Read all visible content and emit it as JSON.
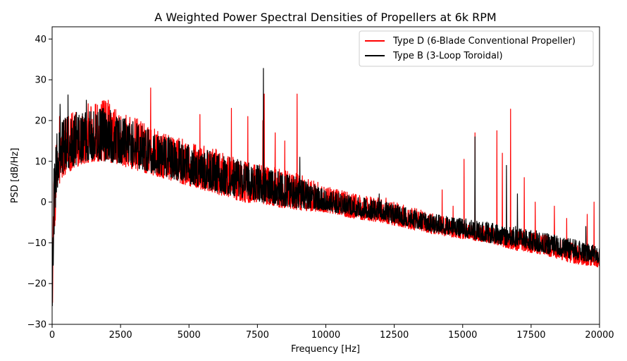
{
  "chart_data": {
    "type": "line",
    "title": "A Weighted Power Spectral Densities of Propellers at 6k RPM",
    "xlabel": "Frequency [Hz]",
    "ylabel": "PSD [dB/Hz]",
    "xlim": [
      0,
      20000
    ],
    "ylim": [
      -30,
      43
    ],
    "xticks": [
      0,
      2500,
      5000,
      7500,
      10000,
      12500,
      15000,
      17500,
      20000
    ],
    "yticks": [
      -30,
      -20,
      -10,
      0,
      10,
      20,
      30,
      40
    ],
    "grid": false,
    "legend_position": "top-right",
    "series": [
      {
        "name": "Type D (6-Blade Conventional Propeller)",
        "color": "#ff0000",
        "envelope": {
          "x": [
            0,
            60,
            150,
            300,
            500,
            1000,
            1500,
            2000,
            2500,
            3000,
            4000,
            5000,
            6000,
            7000,
            8000,
            9000,
            10000,
            11000,
            12000,
            13000,
            14000,
            15000,
            16000,
            17000,
            18000,
            19000,
            20000
          ],
          "low": [
            -30,
            -12,
            0,
            5,
            7,
            9,
            10,
            10,
            9,
            8,
            6,
            4,
            2,
            0,
            -1,
            -2,
            -2.5,
            -4,
            -5,
            -6.5,
            -8,
            -9,
            -10,
            -12,
            -13,
            -15,
            -16
          ],
          "high": [
            -20,
            6,
            15,
            19,
            22,
            23,
            25,
            25,
            22,
            21,
            17,
            15,
            13,
            10,
            9,
            7,
            4,
            2,
            1,
            -1,
            -3,
            -5,
            -6,
            -7,
            -8,
            -10,
            -12
          ]
        },
        "peaks": [
          {
            "x": 270,
            "y": 21
          },
          {
            "x": 600,
            "y": 21
          },
          {
            "x": 1000,
            "y": 20
          },
          {
            "x": 1600,
            "y": 24
          },
          {
            "x": 2050,
            "y": 25
          },
          {
            "x": 3600,
            "y": 28
          },
          {
            "x": 5400,
            "y": 21.5
          },
          {
            "x": 6550,
            "y": 23
          },
          {
            "x": 7150,
            "y": 21
          },
          {
            "x": 7700,
            "y": 20
          },
          {
            "x": 7750,
            "y": 26.5
          },
          {
            "x": 8150,
            "y": 17
          },
          {
            "x": 8500,
            "y": 15
          },
          {
            "x": 8950,
            "y": 26.5
          },
          {
            "x": 10100,
            "y": 3
          },
          {
            "x": 11000,
            "y": 2
          },
          {
            "x": 12200,
            "y": 1
          },
          {
            "x": 14250,
            "y": 3
          },
          {
            "x": 14650,
            "y": -1
          },
          {
            "x": 15050,
            "y": 10.5
          },
          {
            "x": 15450,
            "y": 17
          },
          {
            "x": 16250,
            "y": 17.5
          },
          {
            "x": 16450,
            "y": 12
          },
          {
            "x": 16750,
            "y": 22.8
          },
          {
            "x": 17250,
            "y": 6
          },
          {
            "x": 17650,
            "y": 0
          },
          {
            "x": 18350,
            "y": -1
          },
          {
            "x": 18800,
            "y": -4
          },
          {
            "x": 19550,
            "y": -3
          },
          {
            "x": 19800,
            "y": 0
          }
        ]
      },
      {
        "name": "Type B (3-Loop Toroidal)",
        "color": "#000000",
        "envelope": {
          "x": [
            0,
            60,
            150,
            300,
            500,
            1000,
            1500,
            2000,
            2500,
            3000,
            4000,
            5000,
            6000,
            7000,
            8000,
            9000,
            10000,
            11000,
            12000,
            13000,
            14000,
            15000,
            16000,
            17000,
            18000,
            19000,
            20000
          ],
          "low": [
            -28,
            -10,
            2,
            6,
            8,
            9.5,
            10.5,
            10,
            9.5,
            8.5,
            6.5,
            4.5,
            2.5,
            1,
            -0.5,
            -1.5,
            -2,
            -3.5,
            -4.5,
            -6,
            -7.5,
            -8.5,
            -10,
            -11,
            -12.5,
            -14,
            -15
          ],
          "high": [
            -18,
            8,
            17,
            20,
            21,
            22,
            23,
            23,
            21,
            20,
            17,
            14,
            12,
            10,
            8,
            6,
            3,
            1.5,
            0.5,
            -1.5,
            -3,
            -4,
            -5,
            -6,
            -7.5,
            -9,
            -11
          ]
        },
        "peaks": [
          {
            "x": 290,
            "y": 24
          },
          {
            "x": 580,
            "y": 26.3
          },
          {
            "x": 890,
            "y": 22
          },
          {
            "x": 1250,
            "y": 25
          },
          {
            "x": 1850,
            "y": 23
          },
          {
            "x": 7720,
            "y": 32.8
          },
          {
            "x": 9050,
            "y": 11
          },
          {
            "x": 11950,
            "y": 2
          },
          {
            "x": 15450,
            "y": 16
          },
          {
            "x": 16600,
            "y": 9
          },
          {
            "x": 17000,
            "y": 2
          },
          {
            "x": 19500,
            "y": -6
          }
        ]
      }
    ]
  }
}
